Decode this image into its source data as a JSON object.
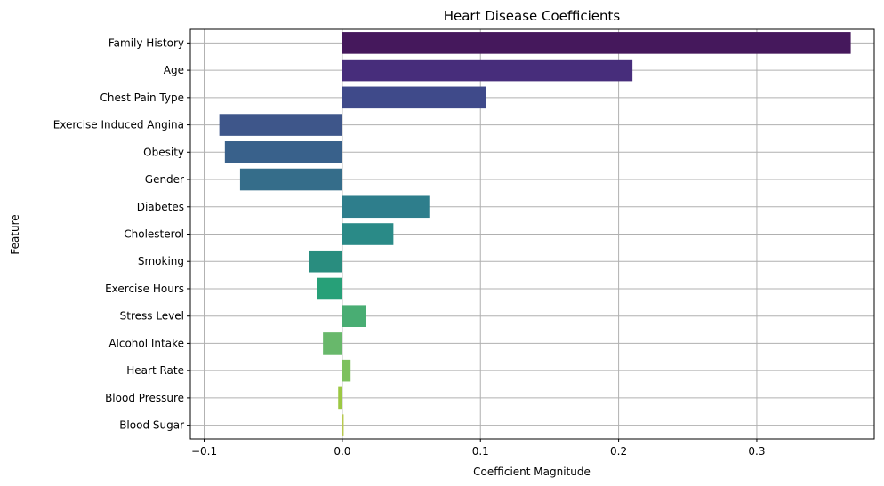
{
  "chart_data": {
    "type": "bar",
    "orientation": "horizontal",
    "title": "Heart Disease Coefficients",
    "xlabel": "Coefficient Magnitude",
    "ylabel": "Feature",
    "xlim": [
      -0.11,
      0.385
    ],
    "x_ticks": [
      -0.1,
      0.0,
      0.1,
      0.2,
      0.3
    ],
    "x_tick_labels": [
      "−0.1",
      "0.0",
      "0.1",
      "0.2",
      "0.3"
    ],
    "grid": true,
    "categories": [
      "Family History",
      "Age",
      "Chest Pain Type",
      "Exercise Induced Angina",
      "Obesity",
      "Gender",
      "Diabetes",
      "Cholesterol",
      "Smoking",
      "Exercise Hours",
      "Stress Level",
      "Alcohol Intake",
      "Heart Rate",
      "Blood Pressure",
      "Blood Sugar"
    ],
    "values": [
      0.368,
      0.21,
      0.104,
      -0.089,
      -0.085,
      -0.074,
      0.063,
      0.037,
      -0.024,
      -0.018,
      0.017,
      -0.014,
      0.006,
      -0.003,
      0.001
    ],
    "colors": [
      "#45185c",
      "#472d7b",
      "#3f4a8a",
      "#3e568a",
      "#39618b",
      "#356d8a",
      "#2e7e8c",
      "#2a8a87",
      "#298d7f",
      "#27a078",
      "#49ad73",
      "#68b86b",
      "#7dc15e",
      "#9cc843",
      "#b8c94f"
    ]
  }
}
